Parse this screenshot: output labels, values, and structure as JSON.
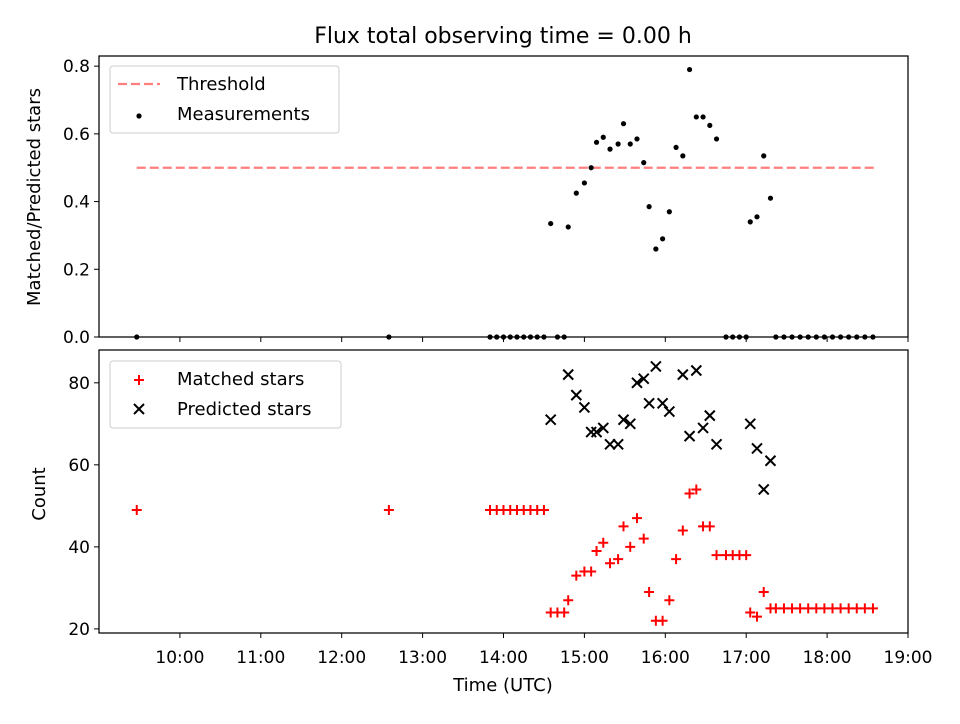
{
  "title": "Flux total observing time = 0.00 h",
  "colors": {
    "threshold": "#ff7f7f",
    "measurement": "#000000",
    "matched": "#ff0000",
    "predicted": "#000000"
  },
  "chart_data": [
    {
      "type": "scatter",
      "ylabel": "Matched/Predicted stars",
      "xlim": [
        "09:00",
        "19:00"
      ],
      "ylim": [
        0,
        0.83
      ],
      "yticks": [
        "0.0",
        "0.2",
        "0.4",
        "0.6",
        "0.8"
      ],
      "ytick_values": [
        0,
        0.2,
        0.4,
        0.6,
        0.8
      ],
      "legend": {
        "placement": "top-left",
        "threshold_label": "Threshold",
        "measurements_label": "Measurements"
      },
      "threshold": {
        "y": 0.5,
        "x_start": "09:28",
        "x_end": "18:35"
      },
      "measurements": [
        [
          "09:28",
          0
        ],
        [
          "12:35",
          0
        ],
        [
          "13:50",
          0
        ],
        [
          "13:55",
          0
        ],
        [
          "14:00",
          0
        ],
        [
          "14:05",
          0
        ],
        [
          "14:10",
          0
        ],
        [
          "14:15",
          0
        ],
        [
          "14:20",
          0
        ],
        [
          "14:25",
          0
        ],
        [
          "14:30",
          0
        ],
        [
          "14:35",
          0.335
        ],
        [
          "14:40",
          0
        ],
        [
          "14:45",
          0
        ],
        [
          "14:48",
          0.325
        ],
        [
          "14:54",
          0.425
        ],
        [
          "15:00",
          0.455
        ],
        [
          "15:05",
          0.5
        ],
        [
          "15:09",
          0.575
        ],
        [
          "15:14",
          0.59
        ],
        [
          "15:19",
          0.555
        ],
        [
          "15:25",
          0.57
        ],
        [
          "15:29",
          0.63
        ],
        [
          "15:34",
          0.57
        ],
        [
          "15:39",
          0.585
        ],
        [
          "15:44",
          0.515
        ],
        [
          "15:48",
          0.385
        ],
        [
          "15:53",
          0.26
        ],
        [
          "15:58",
          0.29
        ],
        [
          "16:03",
          0.37
        ],
        [
          "16:08",
          0.56
        ],
        [
          "16:13",
          0.535
        ],
        [
          "16:18",
          0.79
        ],
        [
          "16:23",
          0.65
        ],
        [
          "16:28",
          0.65
        ],
        [
          "16:33",
          0.625
        ],
        [
          "16:38",
          0.585
        ],
        [
          "16:45",
          0
        ],
        [
          "16:50",
          0
        ],
        [
          "16:55",
          0
        ],
        [
          "17:00",
          0
        ],
        [
          "17:03",
          0.34
        ],
        [
          "17:08",
          0.355
        ],
        [
          "17:13",
          0.535
        ],
        [
          "17:18",
          0.41
        ],
        [
          "17:22",
          0
        ],
        [
          "17:28",
          0
        ],
        [
          "17:34",
          0
        ],
        [
          "17:40",
          0
        ],
        [
          "17:46",
          0
        ],
        [
          "17:52",
          0
        ],
        [
          "17:58",
          0
        ],
        [
          "18:04",
          0
        ],
        [
          "18:10",
          0
        ],
        [
          "18:16",
          0
        ],
        [
          "18:22",
          0
        ],
        [
          "18:28",
          0
        ],
        [
          "18:34",
          0
        ]
      ]
    },
    {
      "type": "scatter",
      "xlabel": "Time (UTC)",
      "ylabel": "Count",
      "xlim": [
        "09:00",
        "19:00"
      ],
      "xticks": [
        "10:00",
        "11:00",
        "12:00",
        "13:00",
        "14:00",
        "15:00",
        "16:00",
        "17:00",
        "18:00",
        "19:00"
      ],
      "ylim": [
        19,
        88
      ],
      "yticks": [
        "20",
        "40",
        "60",
        "80"
      ],
      "ytick_values": [
        20,
        40,
        60,
        80
      ],
      "legend": {
        "placement": "top-left",
        "matched_label": "Matched stars",
        "predicted_label": "Predicted stars"
      },
      "series": [
        {
          "name": "Matched stars",
          "points": [
            [
              "09:28",
              49
            ],
            [
              "12:35",
              49
            ],
            [
              "13:50",
              49
            ],
            [
              "13:55",
              49
            ],
            [
              "14:00",
              49
            ],
            [
              "14:05",
              49
            ],
            [
              "14:10",
              49
            ],
            [
              "14:15",
              49
            ],
            [
              "14:20",
              49
            ],
            [
              "14:25",
              49
            ],
            [
              "14:30",
              49
            ],
            [
              "14:35",
              24
            ],
            [
              "14:40",
              24
            ],
            [
              "14:45",
              24
            ],
            [
              "14:48",
              27
            ],
            [
              "14:54",
              33
            ],
            [
              "15:00",
              34
            ],
            [
              "15:05",
              34
            ],
            [
              "15:09",
              39
            ],
            [
              "15:14",
              41
            ],
            [
              "15:19",
              36
            ],
            [
              "15:25",
              37
            ],
            [
              "15:29",
              45
            ],
            [
              "15:34",
              40
            ],
            [
              "15:39",
              47
            ],
            [
              "15:44",
              42
            ],
            [
              "15:48",
              29
            ],
            [
              "15:53",
              22
            ],
            [
              "15:58",
              22
            ],
            [
              "16:03",
              27
            ],
            [
              "16:08",
              37
            ],
            [
              "16:13",
              44
            ],
            [
              "16:18",
              53
            ],
            [
              "16:23",
              54
            ],
            [
              "16:28",
              45
            ],
            [
              "16:33",
              45
            ],
            [
              "16:38",
              38
            ],
            [
              "16:45",
              38
            ],
            [
              "16:50",
              38
            ],
            [
              "16:55",
              38
            ],
            [
              "17:00",
              38
            ],
            [
              "17:03",
              24
            ],
            [
              "17:08",
              23
            ],
            [
              "17:13",
              29
            ],
            [
              "17:18",
              25
            ],
            [
              "17:22",
              25
            ],
            [
              "17:28",
              25
            ],
            [
              "17:34",
              25
            ],
            [
              "17:40",
              25
            ],
            [
              "17:46",
              25
            ],
            [
              "17:52",
              25
            ],
            [
              "17:58",
              25
            ],
            [
              "18:04",
              25
            ],
            [
              "18:10",
              25
            ],
            [
              "18:16",
              25
            ],
            [
              "18:22",
              25
            ],
            [
              "18:28",
              25
            ],
            [
              "18:34",
              25
            ]
          ]
        },
        {
          "name": "Predicted stars",
          "points": [
            [
              "14:35",
              71
            ],
            [
              "14:48",
              82
            ],
            [
              "14:54",
              77
            ],
            [
              "15:00",
              74
            ],
            [
              "15:05",
              68
            ],
            [
              "15:09",
              68
            ],
            [
              "15:14",
              69
            ],
            [
              "15:19",
              65
            ],
            [
              "15:25",
              65
            ],
            [
              "15:29",
              71
            ],
            [
              "15:34",
              70
            ],
            [
              "15:39",
              80
            ],
            [
              "15:44",
              81
            ],
            [
              "15:48",
              75
            ],
            [
              "15:53",
              84
            ],
            [
              "15:58",
              75
            ],
            [
              "16:03",
              73
            ],
            [
              "16:13",
              82
            ],
            [
              "16:18",
              67
            ],
            [
              "16:23",
              83
            ],
            [
              "16:28",
              69
            ],
            [
              "16:33",
              72
            ],
            [
              "16:38",
              65
            ],
            [
              "17:03",
              70
            ],
            [
              "17:08",
              64
            ],
            [
              "17:13",
              54
            ],
            [
              "17:18",
              61
            ]
          ]
        }
      ]
    }
  ]
}
